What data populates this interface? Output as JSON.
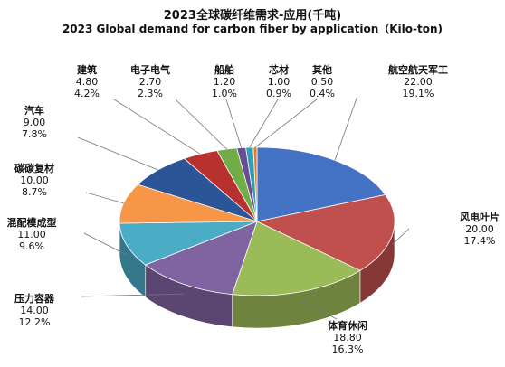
{
  "chart_data": {
    "type": "pie",
    "title": "2023全球碳纤维需求-应用(千吨)",
    "subtitle": "2023 Global demand for carbon fiber by application（Kilo-ton)",
    "slices": [
      {
        "label": "航空航天军工",
        "value": 22.0,
        "value_text": "22.00",
        "percent": "19.1%",
        "color": "#4472C4"
      },
      {
        "label": "风电叶片",
        "value": 20.0,
        "value_text": "20.00",
        "percent": "17.4%",
        "color": "#C0504D"
      },
      {
        "label": "体育休闲",
        "value": 18.8,
        "value_text": "18.80",
        "percent": "16.3%",
        "color": "#9BBB59"
      },
      {
        "label": "压力容器",
        "value": 14.0,
        "value_text": "14.00",
        "percent": "12.2%",
        "color": "#8064A2"
      },
      {
        "label": "混配模成型",
        "value": 11.0,
        "value_text": "11.00",
        "percent": "9.6%",
        "color": "#4BACC6"
      },
      {
        "label": "碳碳复材",
        "value": 10.0,
        "value_text": "10.00",
        "percent": "8.7%",
        "color": "#F79646"
      },
      {
        "label": "汽车",
        "value": 9.0,
        "value_text": "9.00",
        "percent": "7.8%",
        "color": "#2C5597"
      },
      {
        "label": "建筑",
        "value": 4.8,
        "value_text": "4.80",
        "percent": "4.2%",
        "color": "#B8312F"
      },
      {
        "label": "电子电气",
        "value": 2.7,
        "value_text": "2.70",
        "percent": "2.3%",
        "color": "#70AD47"
      },
      {
        "label": "船舶",
        "value": 1.2,
        "value_text": "1.20",
        "percent": "1.0%",
        "color": "#6A4C93"
      },
      {
        "label": "芯材",
        "value": 1.0,
        "value_text": "1.00",
        "percent": "0.9%",
        "color": "#2E9DB8"
      },
      {
        "label": "其他",
        "value": 0.5,
        "value_text": "0.50",
        "percent": "0.4%",
        "color": "#E67E22"
      }
    ]
  }
}
